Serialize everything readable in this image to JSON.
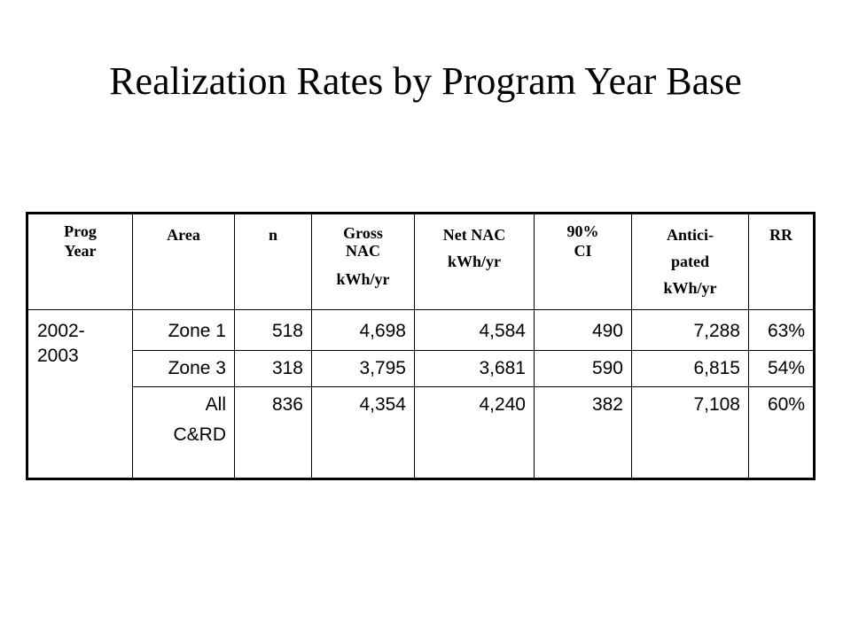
{
  "title": "Realization Rates by Program Year Base",
  "headers": {
    "prog_year": [
      "Prog",
      "Year"
    ],
    "area": "Area",
    "n": "n",
    "gross_nac": [
      "Gross",
      "NAC",
      "kWh/yr"
    ],
    "net_nac": [
      "Net NAC",
      "kWh/yr"
    ],
    "ci": [
      "90%",
      "CI"
    ],
    "anticipated": [
      "Antici-",
      "pated",
      "kWh/yr"
    ],
    "rr": "RR"
  },
  "rows": [
    {
      "year": [
        "2002-",
        "2003"
      ],
      "area": [
        "Zone 1"
      ],
      "n": "518",
      "gross_nac": "4,698",
      "net_nac": "4,584",
      "ci": "490",
      "anticipated": "7,288",
      "rr": "63%"
    },
    {
      "area": [
        "Zone 3"
      ],
      "n": "318",
      "gross_nac": "3,795",
      "net_nac": "3,681",
      "ci": "590",
      "anticipated": "6,815",
      "rr": "54%"
    },
    {
      "area": [
        "All",
        "C&RD"
      ],
      "n": "836",
      "gross_nac": "4,354",
      "net_nac": "4,240",
      "ci": "382",
      "anticipated": "7,108",
      "rr": "60%"
    }
  ]
}
